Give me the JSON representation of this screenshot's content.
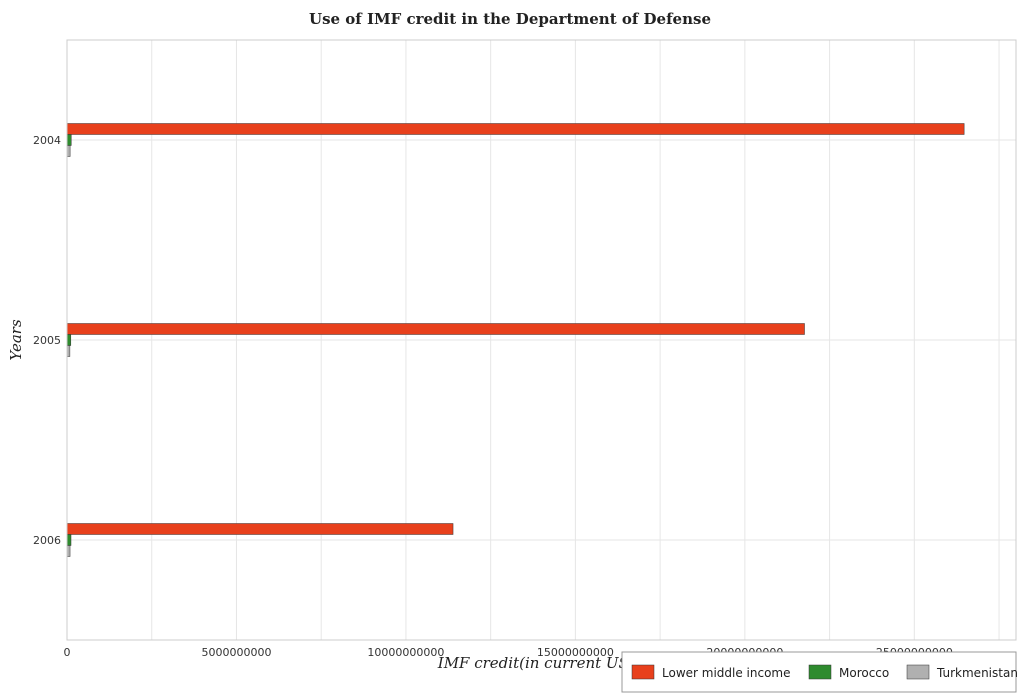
{
  "chart_data": {
    "type": "bar",
    "orientation": "horizontal",
    "title": "Use of IMF credit in the Department of Defense",
    "xlabel": "IMF credit(in current US$)",
    "ylabel": "Years",
    "categories": [
      "2004",
      "2005",
      "2006"
    ],
    "xlim": [
      0,
      28000000000
    ],
    "xticks": [
      0,
      5000000000,
      10000000000,
      15000000000,
      20000000000,
      25000000000
    ],
    "xtick_labels": [
      "0",
      "5000000000",
      "10000000000",
      "15000000000",
      "20000000000",
      "25000000000"
    ],
    "grid": true,
    "legend_position": "bottom-right",
    "series": [
      {
        "name": "Lower middle income",
        "color": "#e8401c",
        "values": [
          26470000000,
          21760000000,
          11390000000
        ]
      },
      {
        "name": "Morocco",
        "color": "#2e8b2e",
        "values": [
          125000000,
          112000000,
          118000000
        ]
      },
      {
        "name": "Turkmenistan",
        "color": "#b0b0b0",
        "values": [
          92000000,
          85000000,
          90000000
        ]
      }
    ]
  }
}
